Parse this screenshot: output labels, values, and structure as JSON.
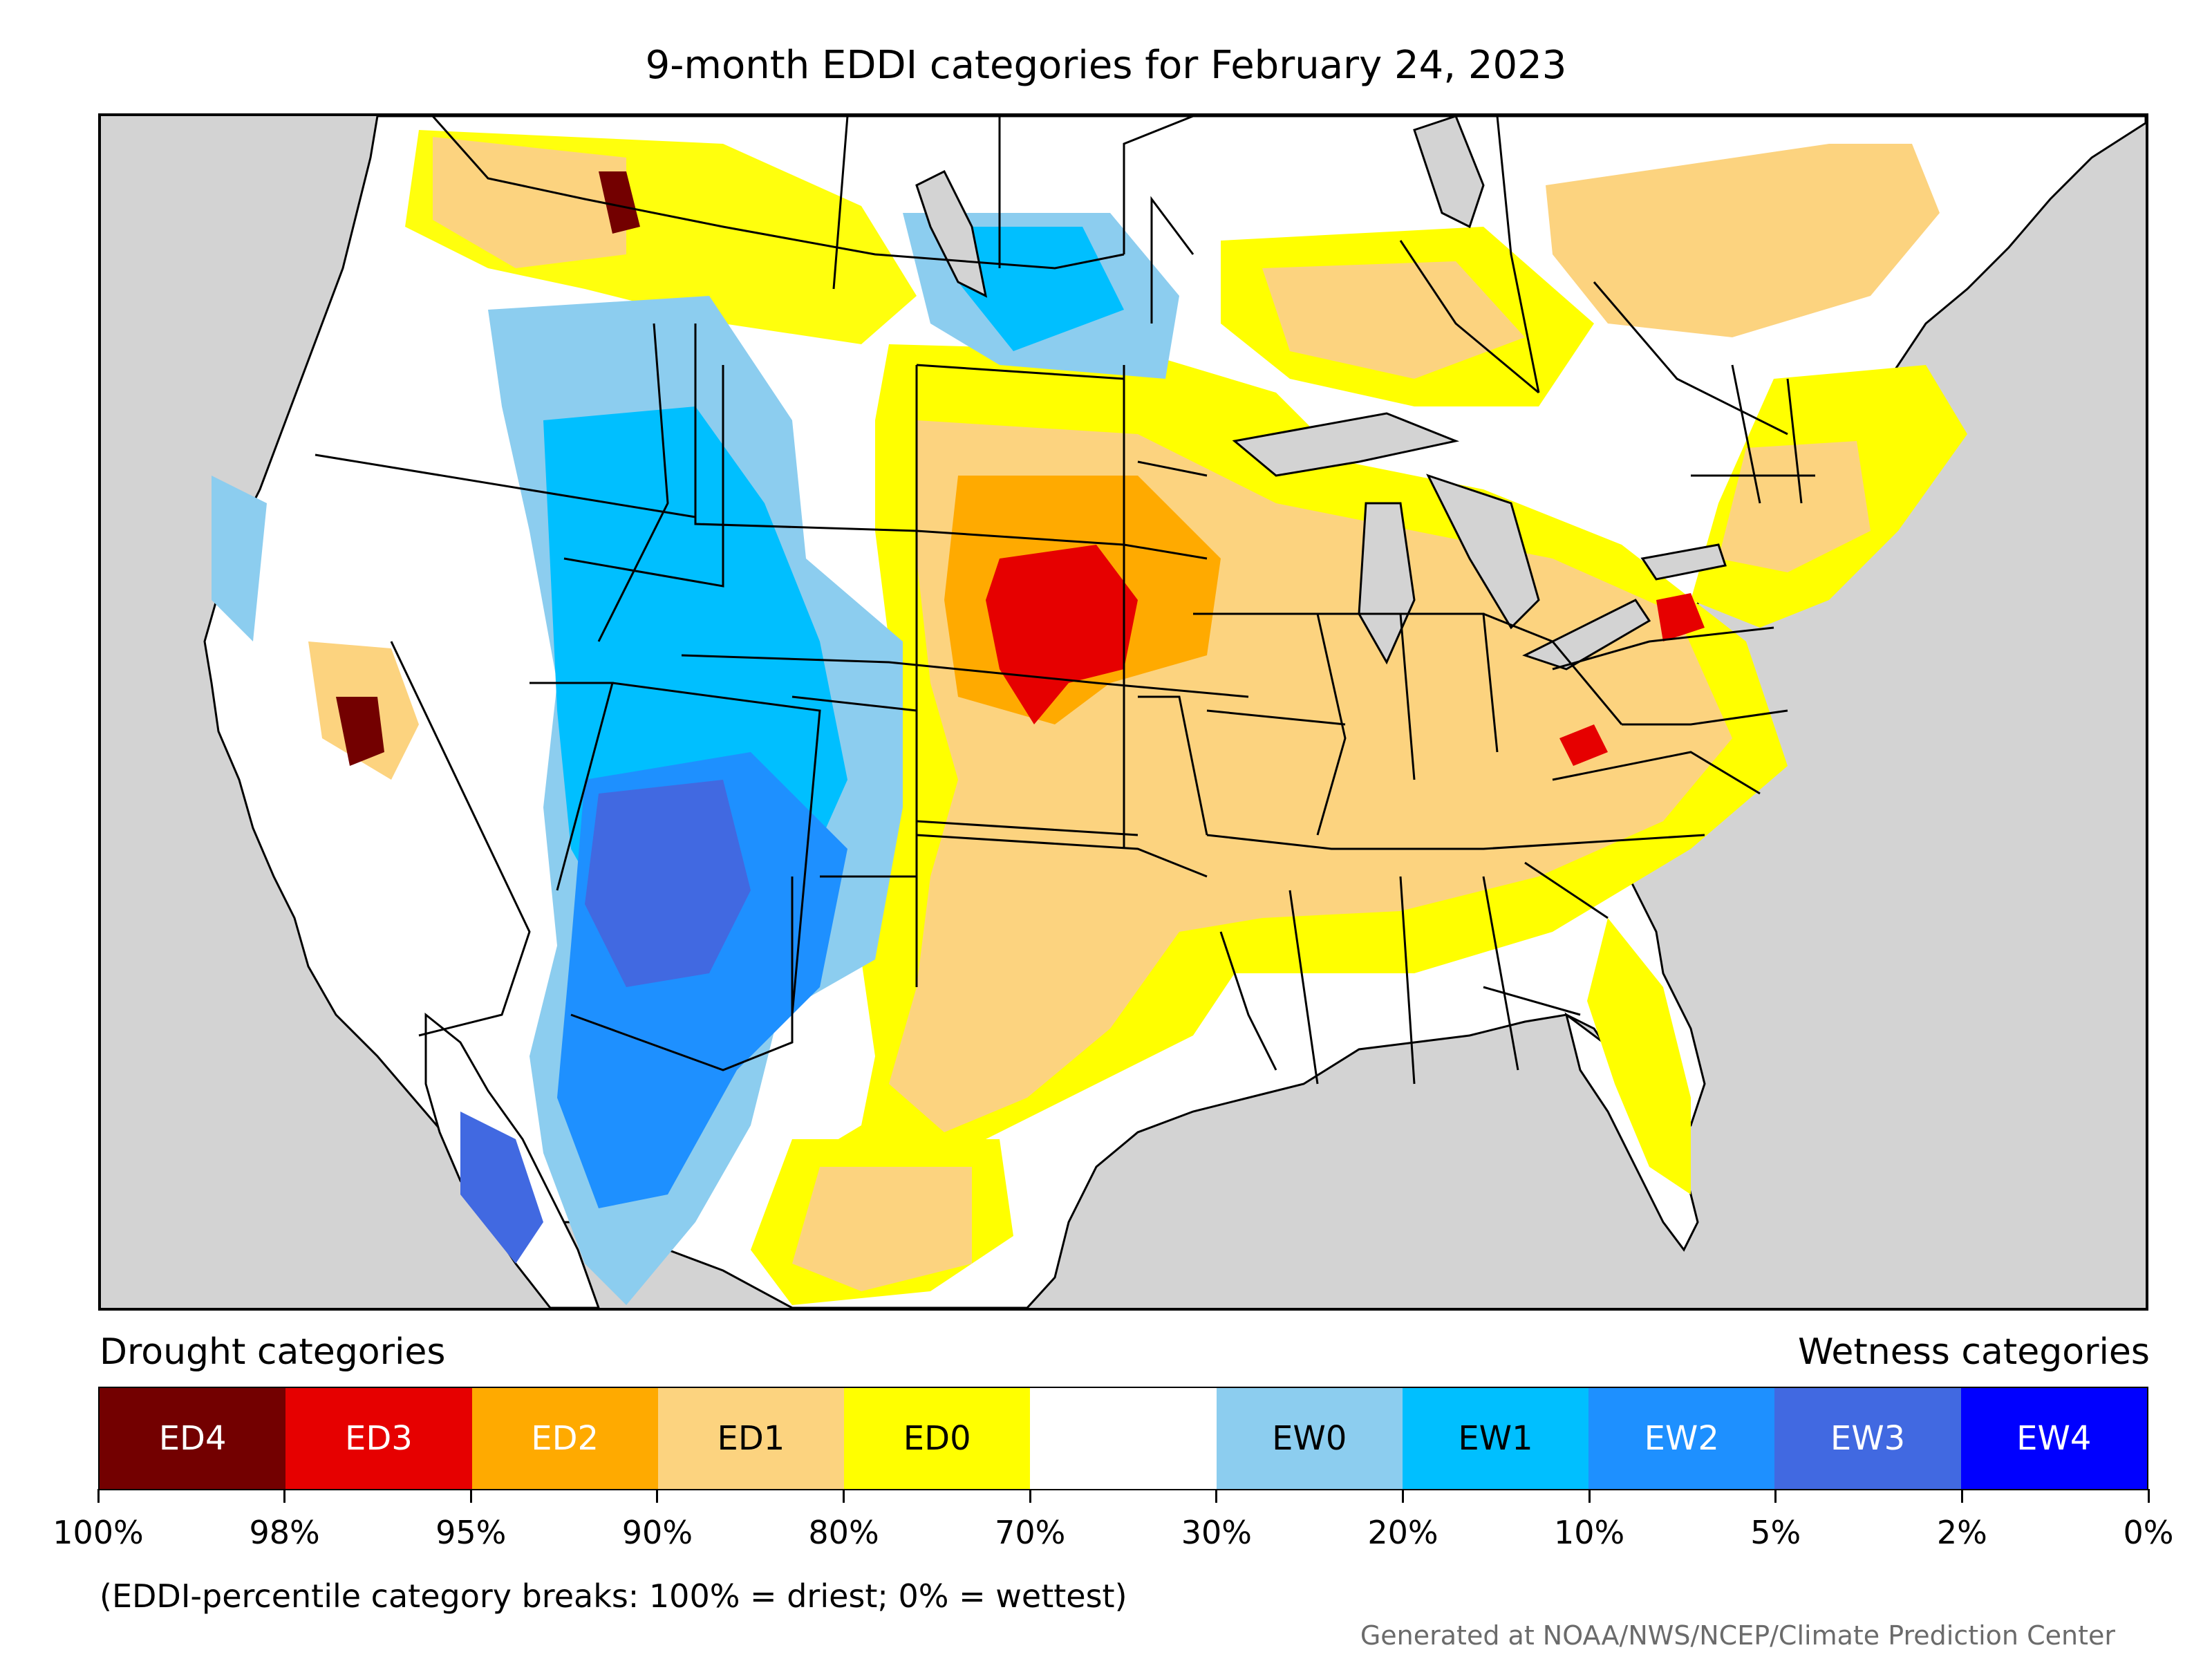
{
  "title": "9-month EDDI categories for February 24, 2023",
  "legend": {
    "left_header": "Drought categories",
    "right_header": "Wetness categories",
    "categories": [
      {
        "label": "ED4",
        "color": "#730000",
        "text_color": "#ffffff"
      },
      {
        "label": "ED3",
        "color": "#e60000",
        "text_color": "#ffffff"
      },
      {
        "label": "ED2",
        "color": "#ffaa00",
        "text_color": "#ffffff"
      },
      {
        "label": "ED1",
        "color": "#fcd37f",
        "text_color": "#000000"
      },
      {
        "label": "ED0",
        "color": "#ffff00",
        "text_color": "#000000"
      },
      {
        "label": "",
        "color": "#ffffff",
        "text_color": "#000000"
      },
      {
        "label": "EW0",
        "color": "#8ccdef",
        "text_color": "#000000"
      },
      {
        "label": "EW1",
        "color": "#00bfff",
        "text_color": "#000000"
      },
      {
        "label": "EW2",
        "color": "#1e90ff",
        "text_color": "#ffffff"
      },
      {
        "label": "EW3",
        "color": "#4169e1",
        "text_color": "#ffffff"
      },
      {
        "label": "EW4",
        "color": "#0000ff",
        "text_color": "#ffffff"
      }
    ],
    "tick_labels": [
      "100%",
      "98%",
      "95%",
      "90%",
      "80%",
      "70%",
      "30%",
      "20%",
      "10%",
      "5%",
      "2%",
      "0%"
    ]
  },
  "note": "(EDDI-percentile category breaks: 100% = driest; 0% = wettest)",
  "credit": "Generated at NOAA/NWS/NCEP/Climate Prediction Center",
  "map": {
    "ocean_color": "#d3d3d3",
    "land_color": "#ffffff",
    "border_color": "#000000"
  }
}
